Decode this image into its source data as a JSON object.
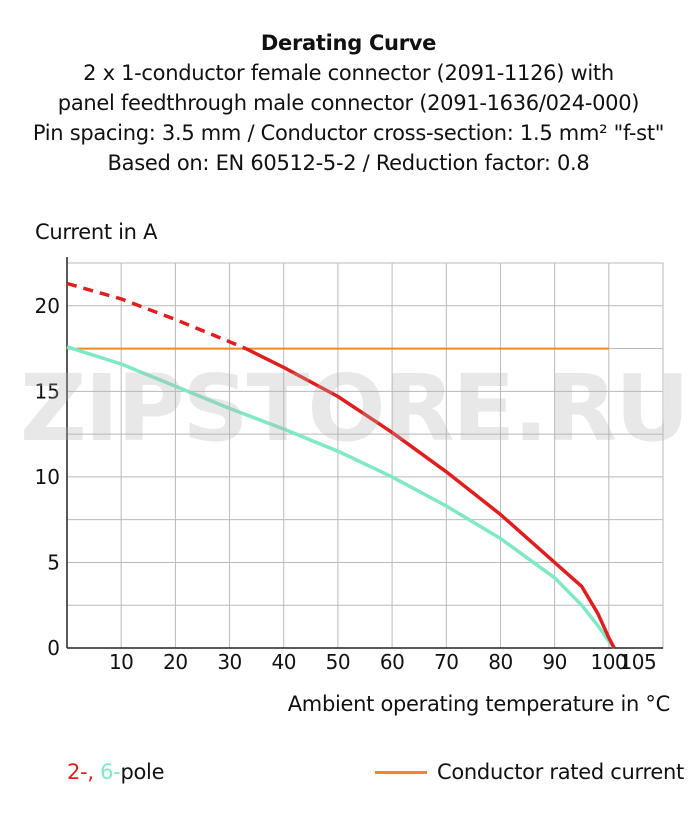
{
  "title": {
    "line1": "Derating Curve",
    "line2": "2 x 1-conductor female connector (2091-1126) with",
    "line3": "panel feedthrough male connector (2091-1636/024-000)",
    "line4": "Pin spacing: 3.5 mm / Conductor cross-section: 1.5 mm² \"f-st\"",
    "line5": "Based on: EN 60512-5-2 / Reduction factor: 0.8"
  },
  "watermark": "ZIPSTORE.RU",
  "colors": {
    "red": "#e11e1e",
    "cyan": "#7fe8c6",
    "orange": "#f08a1c",
    "grid": "#b9b9b9",
    "axis": "#222222"
  },
  "legend": {
    "poles_a": "2-,",
    "poles_b": "6-",
    "poles_suffix": "pole",
    "rated": "Conductor rated current"
  },
  "chart_data": {
    "type": "line",
    "ylabel": "Current in A",
    "xlabel": "Ambient operating temperature in °C",
    "xlim": [
      0,
      110
    ],
    "ylim": [
      0,
      22.5
    ],
    "xticks": [
      10,
      20,
      30,
      40,
      50,
      60,
      70,
      80,
      90,
      100,
      105
    ],
    "yticks": [
      0,
      5,
      10,
      15,
      20
    ],
    "grid": true,
    "series": [
      {
        "name": "2-",
        "color": "#e11e1e",
        "x": [
          0,
          10,
          20,
          30,
          33,
          40,
          50,
          60,
          70,
          80,
          90,
          95,
          98,
          100,
          101
        ],
        "y": [
          21.3,
          20.4,
          19.2,
          17.9,
          17.5,
          16.4,
          14.7,
          12.6,
          10.3,
          7.8,
          5.0,
          3.6,
          2.0,
          0.6,
          0
        ]
      },
      {
        "name": "6-",
        "color": "#7fe8c6",
        "x": [
          0,
          10,
          20,
          30,
          40,
          50,
          60,
          70,
          80,
          90,
          95,
          98,
          100,
          101
        ],
        "y": [
          17.6,
          16.6,
          15.3,
          14.0,
          12.8,
          11.5,
          10.0,
          8.3,
          6.4,
          4.1,
          2.5,
          1.3,
          0.4,
          0
        ]
      },
      {
        "name": "Conductor rated current",
        "color": "#f08a1c",
        "x": [
          0,
          100
        ],
        "y": [
          17.5,
          17.5
        ]
      }
    ]
  }
}
